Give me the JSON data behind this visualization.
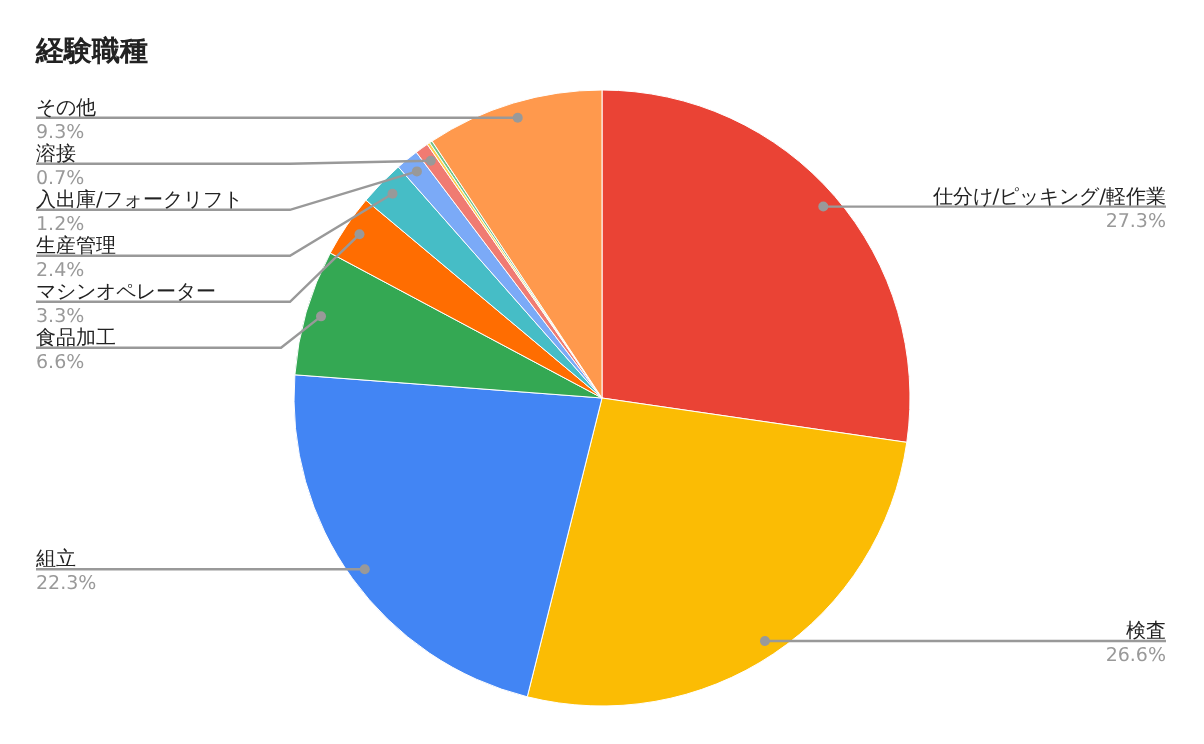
{
  "chart_data": {
    "type": "pie",
    "title": "経験職種",
    "categories": [
      "仕分け/ピッキング/軽作業",
      "検査",
      "組立",
      "食品加工",
      "マシンオペレーター",
      "生産管理",
      "入出庫/フォークリフト",
      "溶接",
      null,
      null,
      "その他"
    ],
    "values": [
      27.3,
      26.6,
      22.3,
      6.6,
      3.3,
      2.4,
      1.2,
      0.7,
      0.15,
      0.15,
      9.3
    ],
    "value_labels": [
      "27.3%",
      "26.6%",
      "22.3%",
      "6.6%",
      "3.3%",
      "2.4%",
      "1.2%",
      "0.7%",
      null,
      null,
      "9.3%"
    ],
    "colors": [
      "#ea4335",
      "#fbbc04",
      "#4285f4",
      "#34a853",
      "#ff6d01",
      "#46bdc6",
      "#7baaf7",
      "#f07b72",
      "#fcd04f",
      "#71c287",
      "#ff994d"
    ],
    "legend": false
  }
}
